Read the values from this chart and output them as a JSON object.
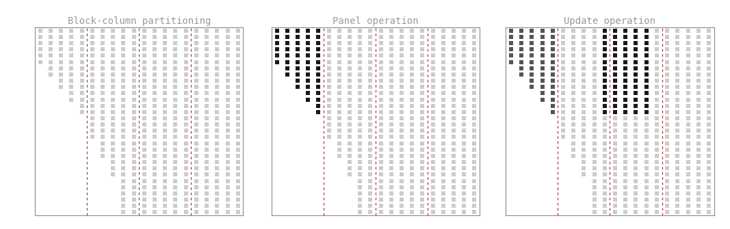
{
  "title1": "Block-column partitioning",
  "title2": "Panel operation",
  "title3": "Update operation",
  "title_fontsize": 10,
  "title_color": "#999999",
  "bg_color": "#ffffff",
  "light_gray": "#cccccc",
  "medium_gray": "#aaaaaa",
  "dark_gray": "#555555",
  "black": "#1a1a1a",
  "dashed_color": "#bb3333",
  "figsize": [
    10.67,
    3.35
  ],
  "dpi": 100,
  "n_rows": 30,
  "n_cols": 20
}
